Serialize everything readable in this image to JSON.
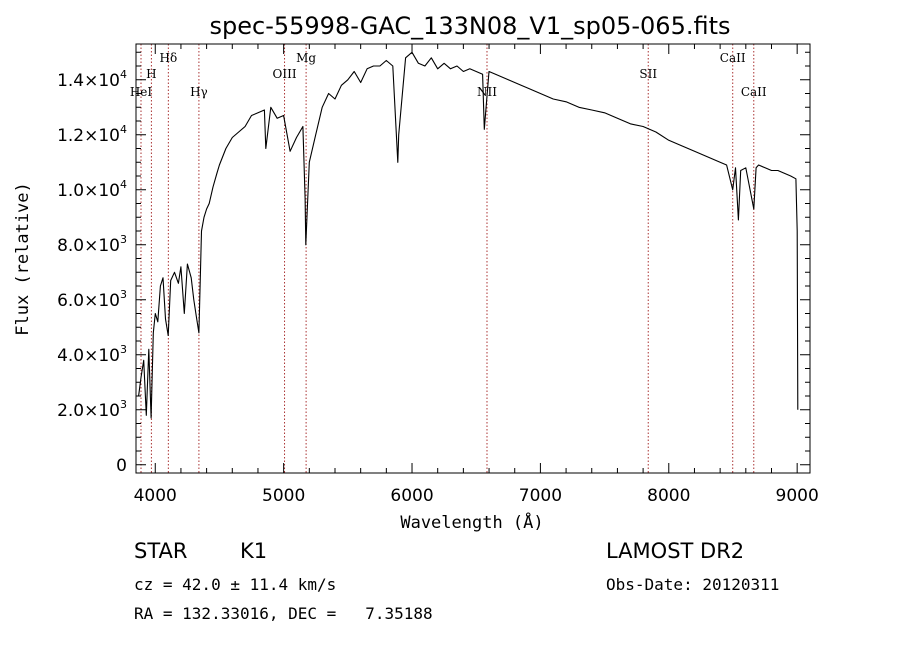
{
  "chart_data": {
    "type": "line",
    "title": "spec-55998-GAC_133N08_V1_sp05-065.fits",
    "xlabel": "Wavelength (Å)",
    "ylabel": "Flux (relative)",
    "xlim": [
      3850,
      9100
    ],
    "ylim": [
      -300,
      15300
    ],
    "x_ticks": [
      4000,
      5000,
      6000,
      7000,
      8000,
      9000
    ],
    "x_tick_labels": [
      "4000",
      "5000",
      "6000",
      "7000",
      "8000",
      "9000"
    ],
    "y_ticks": [
      0,
      2000,
      4000,
      6000,
      8000,
      10000,
      12000,
      14000
    ],
    "y_tick_labels": [
      {
        "mantissa": "0",
        "exp": ""
      },
      {
        "mantissa": "2.0×10",
        "exp": "3"
      },
      {
        "mantissa": "4.0×10",
        "exp": "3"
      },
      {
        "mantissa": "6.0×10",
        "exp": "3"
      },
      {
        "mantissa": "8.0×10",
        "exp": "3"
      },
      {
        "mantissa": "1.0×10",
        "exp": "4"
      },
      {
        "mantissa": "1.2×10",
        "exp": "4"
      },
      {
        "mantissa": "1.4×10",
        "exp": "4"
      }
    ],
    "grid": false,
    "line_color": "#000000",
    "marker_color": "#aa3333",
    "series": [
      {
        "values": [
          [
            3870,
            2500
          ],
          [
            3890,
            3200
          ],
          [
            3910,
            3800
          ],
          [
            3930,
            1800
          ],
          [
            3950,
            4200
          ],
          [
            3968,
            1700
          ],
          [
            3985,
            4800
          ],
          [
            4000,
            5500
          ],
          [
            4020,
            5200
          ],
          [
            4040,
            6500
          ],
          [
            4060,
            6800
          ],
          [
            4080,
            5300
          ],
          [
            4101,
            4700
          ],
          [
            4120,
            6700
          ],
          [
            4150,
            7000
          ],
          [
            4180,
            6600
          ],
          [
            4200,
            7200
          ],
          [
            4226,
            5500
          ],
          [
            4250,
            7300
          ],
          [
            4280,
            6800
          ],
          [
            4300,
            6000
          ],
          [
            4320,
            5400
          ],
          [
            4340,
            4800
          ],
          [
            4360,
            8500
          ],
          [
            4380,
            9000
          ],
          [
            4400,
            9300
          ],
          [
            4420,
            9500
          ],
          [
            4450,
            10100
          ],
          [
            4480,
            10600
          ],
          [
            4500,
            10900
          ],
          [
            4550,
            11500
          ],
          [
            4600,
            11900
          ],
          [
            4650,
            12100
          ],
          [
            4700,
            12300
          ],
          [
            4750,
            12700
          ],
          [
            4800,
            12800
          ],
          [
            4850,
            12900
          ],
          [
            4861,
            11500
          ],
          [
            4900,
            13000
          ],
          [
            4950,
            12600
          ],
          [
            5000,
            12700
          ],
          [
            5050,
            11400
          ],
          [
            5100,
            11900
          ],
          [
            5150,
            12300
          ],
          [
            5167,
            9700
          ],
          [
            5173,
            8000
          ],
          [
            5184,
            9300
          ],
          [
            5200,
            11000
          ],
          [
            5250,
            12000
          ],
          [
            5300,
            13000
          ],
          [
            5350,
            13500
          ],
          [
            5400,
            13300
          ],
          [
            5450,
            13800
          ],
          [
            5500,
            14000
          ],
          [
            5550,
            14300
          ],
          [
            5600,
            13900
          ],
          [
            5650,
            14400
          ],
          [
            5700,
            14500
          ],
          [
            5750,
            14500
          ],
          [
            5800,
            14700
          ],
          [
            5850,
            14500
          ],
          [
            5889,
            11000
          ],
          [
            5896,
            12000
          ],
          [
            5950,
            14800
          ],
          [
            6000,
            15000
          ],
          [
            6050,
            14600
          ],
          [
            6100,
            14500
          ],
          [
            6150,
            14800
          ],
          [
            6200,
            14400
          ],
          [
            6250,
            14600
          ],
          [
            6300,
            14400
          ],
          [
            6350,
            14500
          ],
          [
            6400,
            14300
          ],
          [
            6450,
            14400
          ],
          [
            6500,
            14300
          ],
          [
            6550,
            14200
          ],
          [
            6563,
            12200
          ],
          [
            6600,
            14300
          ],
          [
            6650,
            14200
          ],
          [
            6700,
            14100
          ],
          [
            6750,
            14000
          ],
          [
            6800,
            13900
          ],
          [
            6850,
            13800
          ],
          [
            6900,
            13700
          ],
          [
            6950,
            13600
          ],
          [
            7000,
            13500
          ],
          [
            7100,
            13300
          ],
          [
            7200,
            13200
          ],
          [
            7300,
            13000
          ],
          [
            7400,
            12900
          ],
          [
            7500,
            12800
          ],
          [
            7600,
            12600
          ],
          [
            7700,
            12400
          ],
          [
            7800,
            12300
          ],
          [
            7900,
            12100
          ],
          [
            8000,
            11800
          ],
          [
            8100,
            11600
          ],
          [
            8200,
            11400
          ],
          [
            8300,
            11200
          ],
          [
            8400,
            11000
          ],
          [
            8450,
            10900
          ],
          [
            8498,
            10000
          ],
          [
            8520,
            10800
          ],
          [
            8542,
            8900
          ],
          [
            8560,
            10700
          ],
          [
            8600,
            10800
          ],
          [
            8662,
            9300
          ],
          [
            8680,
            10800
          ],
          [
            8700,
            10900
          ],
          [
            8750,
            10800
          ],
          [
            8800,
            10700
          ],
          [
            8850,
            10700
          ],
          [
            8900,
            10600
          ],
          [
            8950,
            10500
          ],
          [
            8990,
            10400
          ],
          [
            9000,
            8500
          ],
          [
            9005,
            2000
          ]
        ]
      }
    ],
    "line_markers": [
      {
        "label": "HeI",
        "x": 3889,
        "row": 4
      },
      {
        "label": "H",
        "x": 3970,
        "row": 2
      },
      {
        "label": "Hδ",
        "x": 4102,
        "row": 1
      },
      {
        "label": "Hγ",
        "x": 4340,
        "row": 4
      },
      {
        "label": "OIII",
        "x": 5007,
        "row": 2
      },
      {
        "label": "Mg",
        "x": 5175,
        "row": 1
      },
      {
        "label": "NII",
        "x": 6584,
        "row": 4
      },
      {
        "label": "SII",
        "x": 7840,
        "row": 2
      },
      {
        "label": "CaII",
        "x": 8498,
        "row": 1
      },
      {
        "label": "CaII",
        "x": 8662,
        "row": 4
      }
    ]
  },
  "info": {
    "object_class": "STAR",
    "subclass": "K1",
    "cz_line": "cz = 42.0 ± 11.4 km/s",
    "coords_line": "RA = 132.33016, DEC =   7.35188",
    "survey": "LAMOST DR2",
    "obs_date_line": "Obs-Date: 20120311"
  }
}
